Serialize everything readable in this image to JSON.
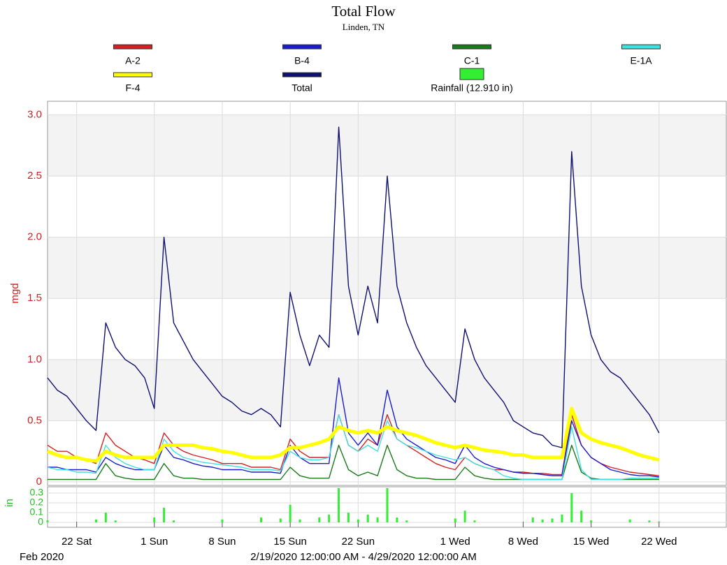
{
  "chart_data": {
    "type": "line",
    "title": "Total Flow",
    "subtitle": "Linden, TN",
    "ylabel": "mgd",
    "y2label": "in",
    "x_period_label": "Feb 2020",
    "xlabel": "2/19/2020 12:00:00 AM - 4/29/2020 12:00:00 AM",
    "grid": true,
    "xlim": [
      "2020-02-19",
      "2020-04-29"
    ],
    "xticks": [
      {
        "value": "2020-02-22",
        "label": "22 Sat"
      },
      {
        "value": "2020-03-01",
        "label": "1 Sun"
      },
      {
        "value": "2020-03-08",
        "label": "8 Sun"
      },
      {
        "value": "2020-03-15",
        "label": "15 Sun"
      },
      {
        "value": "2020-03-22",
        "label": "22 Sun"
      },
      {
        "value": "2020-04-01",
        "label": "1 Wed"
      },
      {
        "value": "2020-04-08",
        "label": "8 Wed"
      },
      {
        "value": "2020-04-15",
        "label": "15 Wed"
      },
      {
        "value": "2020-04-22",
        "label": "22 Wed"
      }
    ],
    "ylim": [
      0,
      3.1
    ],
    "yticks": [
      0,
      0.5,
      {
        "value": 1,
        "label": "1.0"
      },
      1.5,
      {
        "value": 2,
        "label": "2.0"
      },
      2.5,
      {
        "value": 3,
        "label": "3.0"
      }
    ],
    "y2lim": [
      0,
      0.35
    ],
    "y2ticks": [
      0,
      0.1,
      0.2,
      0.3
    ],
    "x": [
      "2020-02-19",
      "2020-02-20",
      "2020-02-21",
      "2020-02-22",
      "2020-02-23",
      "2020-02-24",
      "2020-02-25",
      "2020-02-26",
      "2020-02-27",
      "2020-02-28",
      "2020-02-29",
      "2020-03-01",
      "2020-03-02",
      "2020-03-03",
      "2020-03-04",
      "2020-03-05",
      "2020-03-06",
      "2020-03-07",
      "2020-03-08",
      "2020-03-09",
      "2020-03-10",
      "2020-03-11",
      "2020-03-12",
      "2020-03-13",
      "2020-03-14",
      "2020-03-15",
      "2020-03-16",
      "2020-03-17",
      "2020-03-18",
      "2020-03-19",
      "2020-03-20",
      "2020-03-21",
      "2020-03-22",
      "2020-03-23",
      "2020-03-24",
      "2020-03-25",
      "2020-03-26",
      "2020-03-27",
      "2020-03-28",
      "2020-03-29",
      "2020-03-30",
      "2020-03-31",
      "2020-04-01",
      "2020-04-02",
      "2020-04-03",
      "2020-04-04",
      "2020-04-05",
      "2020-04-06",
      "2020-04-07",
      "2020-04-08",
      "2020-04-09",
      "2020-04-10",
      "2020-04-11",
      "2020-04-12",
      "2020-04-13",
      "2020-04-14",
      "2020-04-15",
      "2020-04-16",
      "2020-04-17",
      "2020-04-18",
      "2020-04-19",
      "2020-04-20",
      "2020-04-21",
      "2020-04-22"
    ],
    "series": [
      {
        "name": "A-2",
        "color": "#d42020",
        "values": [
          0.3,
          0.25,
          0.25,
          0.2,
          0.18,
          0.15,
          0.4,
          0.3,
          0.25,
          0.2,
          0.18,
          0.15,
          0.4,
          0.3,
          0.25,
          0.22,
          0.2,
          0.18,
          0.15,
          0.15,
          0.15,
          0.12,
          0.12,
          0.12,
          0.1,
          0.35,
          0.25,
          0.2,
          0.2,
          0.2,
          0.55,
          0.3,
          0.25,
          0.35,
          0.3,
          0.55,
          0.35,
          0.3,
          0.25,
          0.2,
          0.15,
          0.12,
          0.1,
          0.2,
          0.15,
          0.12,
          0.1,
          0.1,
          0.08,
          0.08,
          0.07,
          0.07,
          0.06,
          0.06,
          0.55,
          0.3,
          0.2,
          0.15,
          0.12,
          0.1,
          0.08,
          0.07,
          0.06,
          0.05
        ]
      },
      {
        "name": "B-4",
        "color": "#1b1bd0",
        "values": [
          0.12,
          0.12,
          0.1,
          0.1,
          0.1,
          0.08,
          0.2,
          0.15,
          0.12,
          0.1,
          0.1,
          0.1,
          0.3,
          0.2,
          0.18,
          0.15,
          0.13,
          0.12,
          0.1,
          0.1,
          0.1,
          0.08,
          0.08,
          0.08,
          0.07,
          0.3,
          0.2,
          0.15,
          0.15,
          0.15,
          0.85,
          0.4,
          0.3,
          0.4,
          0.3,
          0.75,
          0.45,
          0.35,
          0.3,
          0.25,
          0.2,
          0.18,
          0.15,
          0.3,
          0.2,
          0.15,
          0.12,
          0.1,
          0.08,
          0.07,
          0.07,
          0.06,
          0.05,
          0.05,
          0.5,
          0.3,
          0.2,
          0.15,
          0.1,
          0.08,
          0.06,
          0.05,
          0.05,
          0.04
        ]
      },
      {
        "name": "C-1",
        "color": "#1a7a1a",
        "values": [
          0.02,
          0.02,
          0.02,
          0.02,
          0.02,
          0.02,
          0.15,
          0.05,
          0.03,
          0.02,
          0.02,
          0.02,
          0.15,
          0.05,
          0.03,
          0.03,
          0.02,
          0.02,
          0.02,
          0.02,
          0.02,
          0.02,
          0.02,
          0.02,
          0.02,
          0.12,
          0.05,
          0.03,
          0.03,
          0.03,
          0.3,
          0.1,
          0.05,
          0.08,
          0.05,
          0.3,
          0.1,
          0.05,
          0.03,
          0.03,
          0.02,
          0.02,
          0.02,
          0.12,
          0.05,
          0.03,
          0.02,
          0.02,
          0.02,
          0.02,
          0.02,
          0.02,
          0.02,
          0.02,
          0.3,
          0.08,
          0.03,
          0.02,
          0.02,
          0.02,
          0.02,
          0.02,
          0.02,
          0.02
        ]
      },
      {
        "name": "E-1A",
        "color": "#40e0e0",
        "values": [
          0.12,
          0.1,
          0.1,
          0.08,
          0.08,
          0.07,
          0.3,
          0.2,
          0.15,
          0.12,
          0.1,
          0.1,
          0.35,
          0.25,
          0.2,
          0.18,
          0.16,
          0.15,
          0.14,
          0.13,
          0.12,
          0.1,
          0.1,
          0.1,
          0.09,
          0.25,
          0.2,
          0.18,
          0.18,
          0.2,
          0.55,
          0.3,
          0.25,
          0.3,
          0.25,
          0.5,
          0.35,
          0.3,
          0.28,
          0.25,
          0.22,
          0.2,
          0.18,
          0.2,
          0.15,
          0.12,
          0.1,
          0.05,
          0.03,
          0.02,
          0.02,
          0.02,
          0.02,
          0.02,
          0.45,
          0.1,
          0.02,
          0.02,
          0.02,
          0.02,
          0.03,
          0.03,
          0.03,
          0.03
        ]
      },
      {
        "name": "F-4",
        "color": "#ffff00",
        "values": [
          0.25,
          0.22,
          0.2,
          0.2,
          0.18,
          0.17,
          0.25,
          0.22,
          0.2,
          0.2,
          0.2,
          0.2,
          0.3,
          0.3,
          0.3,
          0.3,
          0.28,
          0.27,
          0.25,
          0.24,
          0.22,
          0.2,
          0.2,
          0.2,
          0.22,
          0.28,
          0.28,
          0.3,
          0.32,
          0.35,
          0.45,
          0.42,
          0.4,
          0.42,
          0.4,
          0.45,
          0.42,
          0.4,
          0.38,
          0.35,
          0.32,
          0.3,
          0.28,
          0.3,
          0.28,
          0.26,
          0.25,
          0.24,
          0.22,
          0.22,
          0.2,
          0.2,
          0.2,
          0.2,
          0.6,
          0.4,
          0.35,
          0.32,
          0.3,
          0.28,
          0.25,
          0.22,
          0.2,
          0.18
        ]
      },
      {
        "name": "Total",
        "color": "#101070",
        "values": [
          0.85,
          0.75,
          0.7,
          0.6,
          0.5,
          0.42,
          1.3,
          1.1,
          1.0,
          0.95,
          0.85,
          0.6,
          2.0,
          1.3,
          1.15,
          1.0,
          0.9,
          0.8,
          0.7,
          0.65,
          0.58,
          0.55,
          0.6,
          0.55,
          0.45,
          1.55,
          1.2,
          0.95,
          1.2,
          1.1,
          2.9,
          1.6,
          1.2,
          1.6,
          1.3,
          2.5,
          1.6,
          1.3,
          1.1,
          0.95,
          0.85,
          0.75,
          0.65,
          1.25,
          1.0,
          0.85,
          0.75,
          0.65,
          0.5,
          0.45,
          0.4,
          0.38,
          0.3,
          0.28,
          2.7,
          1.6,
          1.2,
          1.0,
          0.9,
          0.85,
          0.75,
          0.65,
          0.55,
          0.4
        ]
      },
      {
        "name": "Rainfall (12.910 in)",
        "color": "#33ee33",
        "type": "bar",
        "axis": "y2",
        "values": [
          0.02,
          0,
          0,
          0,
          0,
          0.03,
          0.1,
          0.02,
          0,
          0,
          0,
          0.05,
          0.15,
          0.02,
          0,
          0,
          0,
          0,
          0.03,
          0,
          0,
          0,
          0.05,
          0,
          0.04,
          0.18,
          0.03,
          0,
          0.05,
          0.08,
          0.35,
          0.1,
          0.03,
          0.08,
          0.05,
          0.35,
          0.05,
          0.02,
          0,
          0,
          0,
          0,
          0.04,
          0.12,
          0.02,
          0,
          0,
          0,
          0,
          0,
          0.05,
          0.03,
          0.04,
          0.08,
          0.3,
          0.12,
          0.02,
          0,
          0,
          0,
          0.03,
          0,
          0.02,
          0.01
        ]
      }
    ]
  }
}
